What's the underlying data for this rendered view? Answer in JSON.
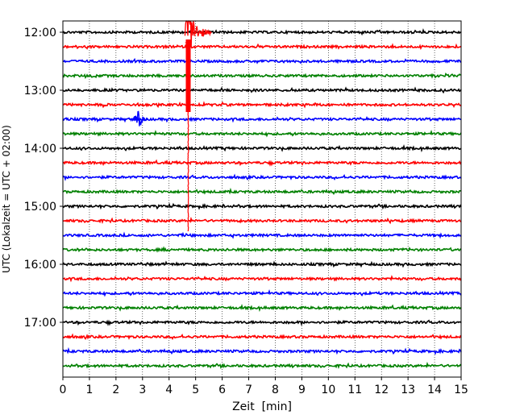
{
  "chart_data": {
    "type": "line",
    "title": "",
    "xlabel": "Zeit  [min]",
    "ylabel": "UTC (Lokalzeit = UTC + 02:00)",
    "xlim": [
      0,
      15
    ],
    "x_ticks": [
      "0",
      "1",
      "2",
      "3",
      "4",
      "5",
      "6",
      "7",
      "8",
      "9",
      "10",
      "11",
      "12",
      "13",
      "14",
      "15"
    ],
    "y_ticks": [
      "12:00",
      "13:00",
      "14:00",
      "15:00",
      "16:00",
      "17:00"
    ],
    "trace_start_times": [
      "12:00",
      "12:15",
      "12:30",
      "12:45",
      "13:00",
      "13:15",
      "13:30",
      "13:45",
      "14:00",
      "14:15",
      "14:30",
      "14:45",
      "15:00",
      "15:15",
      "15:30",
      "15:45",
      "16:00",
      "16:15",
      "16:30",
      "16:45",
      "17:00",
      "17:15",
      "17:30",
      "17:45"
    ],
    "trace_colors": [
      "#000000",
      "#ff0000",
      "#0000ff",
      "#008000"
    ],
    "grid_x": true,
    "events": [
      {
        "time": "12:00",
        "minute_start": 4.6,
        "minute_end": 5.6,
        "color": "#ff0000",
        "description": "large earthquake arrival with coda extending to about 15:30"
      },
      {
        "time": "13:30",
        "minute_start": 2.5,
        "minute_end": 3.2,
        "color": "#0000ff",
        "description": "local event"
      }
    ]
  }
}
